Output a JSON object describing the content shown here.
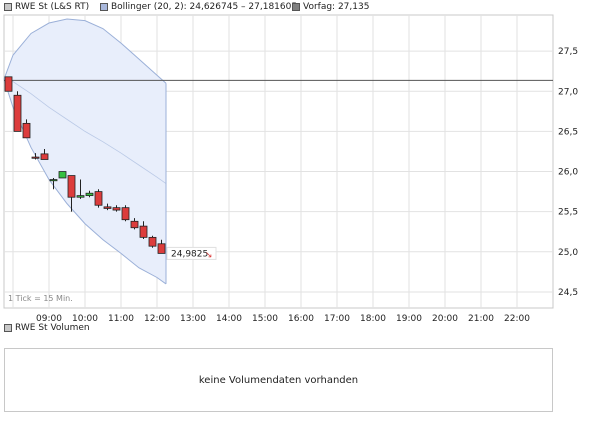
{
  "legend": {
    "items": [
      {
        "label": "RWE St (L&S RT)",
        "color": "#c8c8c8"
      },
      {
        "label": "Bollinger (20, 2): 24,626745 – 27,181605",
        "color": "#a9b8dc"
      },
      {
        "label": "Vorfag: 27,135",
        "color": "#808080"
      }
    ]
  },
  "colors": {
    "up": "#36c040",
    "down": "#dc3c3c",
    "band_fill": "#e8eefb",
    "band_line": "#9bb0d8",
    "prev_line": "#555555",
    "grid": "#e2e2e2"
  },
  "tick_note": "1 Tick = 15 Min.",
  "last_price_label": "24,9825",
  "chart_data": {
    "type": "candlestick",
    "yticks": [
      "27,5",
      "27,0",
      "26,5",
      "26,0",
      "25,5",
      "25,0",
      "24,5"
    ],
    "ytick_values": [
      27.5,
      27.0,
      26.5,
      26.0,
      25.5,
      25.0,
      24.5
    ],
    "ylim": [
      24.3,
      27.95
    ],
    "xticks": [
      "09:00",
      "10:00",
      "11:00",
      "12:00",
      "13:00",
      "14:00",
      "15:00",
      "16:00",
      "17:00",
      "18:00",
      "19:00",
      "20:00",
      "21:00",
      "22:00"
    ],
    "xtick_hours": [
      9,
      10,
      11,
      12,
      13,
      14,
      15,
      16,
      17,
      18,
      19,
      20,
      21,
      22
    ],
    "xlim_hours": [
      7.75,
      23.0
    ],
    "previous_close": 27.135,
    "candles": [
      {
        "t": 7.875,
        "open": 27.18,
        "high": 27.18,
        "low": 27.0,
        "close": 27.0
      },
      {
        "t": 8.125,
        "open": 26.95,
        "high": 27.0,
        "low": 26.5,
        "close": 26.5
      },
      {
        "t": 8.375,
        "open": 26.6,
        "high": 26.65,
        "low": 26.42,
        "close": 26.42
      },
      {
        "t": 8.625,
        "open": 26.18,
        "high": 26.23,
        "low": 26.15,
        "close": 26.17
      },
      {
        "t": 8.875,
        "open": 26.22,
        "high": 26.28,
        "low": 26.15,
        "close": 26.15
      },
      {
        "t": 9.125,
        "open": 25.9,
        "high": 25.92,
        "low": 25.78,
        "close": 25.9
      },
      {
        "t": 9.375,
        "open": 25.92,
        "high": 26.0,
        "low": 25.92,
        "close": 26.0
      },
      {
        "t": 9.625,
        "open": 25.95,
        "high": 25.95,
        "low": 25.5,
        "close": 25.68
      },
      {
        "t": 9.875,
        "open": 25.68,
        "high": 25.9,
        "low": 25.66,
        "close": 25.7
      },
      {
        "t": 10.125,
        "open": 25.7,
        "high": 25.76,
        "low": 25.68,
        "close": 25.73
      },
      {
        "t": 10.375,
        "open": 25.75,
        "high": 25.78,
        "low": 25.55,
        "close": 25.58
      },
      {
        "t": 10.625,
        "open": 25.56,
        "high": 25.6,
        "low": 25.52,
        "close": 25.54
      },
      {
        "t": 10.875,
        "open": 25.55,
        "high": 25.58,
        "low": 25.5,
        "close": 25.52
      },
      {
        "t": 11.125,
        "open": 25.55,
        "high": 25.58,
        "low": 25.38,
        "close": 25.4
      },
      {
        "t": 11.375,
        "open": 25.38,
        "high": 25.42,
        "low": 25.28,
        "close": 25.3
      },
      {
        "t": 11.625,
        "open": 25.32,
        "high": 25.38,
        "low": 25.16,
        "close": 25.18
      },
      {
        "t": 11.875,
        "open": 25.18,
        "high": 25.2,
        "low": 25.05,
        "close": 25.07
      },
      {
        "t": 12.125,
        "open": 25.1,
        "high": 25.15,
        "low": 24.98,
        "close": 24.98
      }
    ],
    "bollinger": {
      "t": [
        7.75,
        8.0,
        8.5,
        9.0,
        9.5,
        10.0,
        10.5,
        11.0,
        11.5,
        12.0,
        12.25
      ],
      "upper": [
        27.15,
        27.45,
        27.72,
        27.85,
        27.9,
        27.88,
        27.78,
        27.6,
        27.4,
        27.2,
        27.1
      ],
      "middle": [
        27.15,
        27.12,
        26.97,
        26.8,
        26.65,
        26.5,
        26.37,
        26.23,
        26.08,
        25.93,
        25.85
      ],
      "lower": [
        27.15,
        26.8,
        26.3,
        25.9,
        25.6,
        25.35,
        25.15,
        24.98,
        24.8,
        24.68,
        24.6
      ]
    }
  },
  "volume": {
    "legend_label": "RWE St Volumen",
    "legend_color": "#c8c8c8",
    "message": "keine Volumendaten vorhanden"
  }
}
